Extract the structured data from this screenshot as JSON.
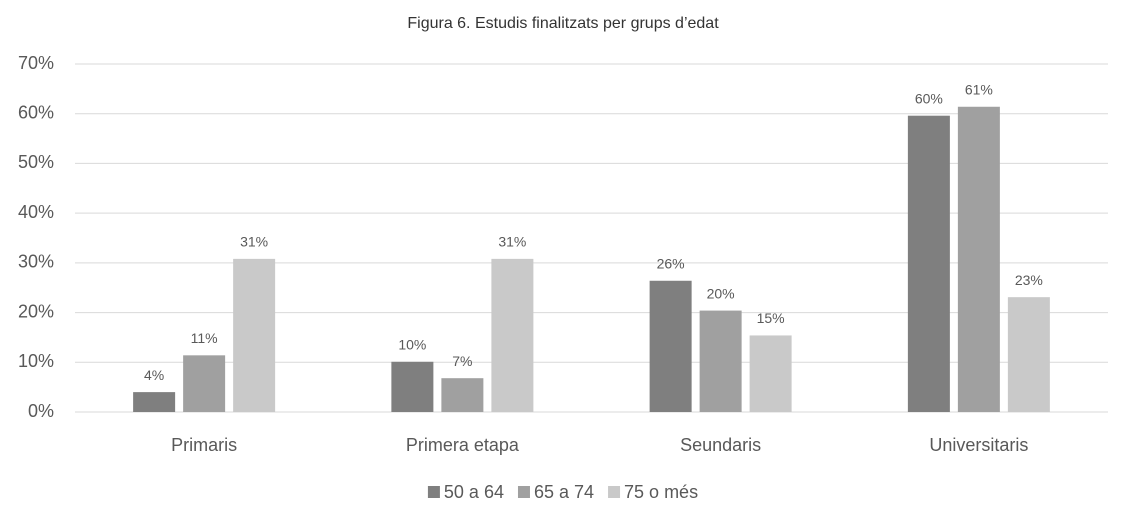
{
  "chart_data": {
    "type": "bar",
    "title": "Figura 6. Estudis finalitzats per grups d’edat",
    "categories": [
      "Primaris",
      "Primera etapa",
      "Seundaris",
      "Universitaris"
    ],
    "series": [
      {
        "name": "50 a 64",
        "color": "#7f7f7f",
        "values": [
          4.0,
          10.1,
          26.4,
          59.6
        ],
        "value_labels": [
          "4%",
          "10%",
          "26%",
          "60%"
        ]
      },
      {
        "name": "65 a 74",
        "color": "#a0a0a0",
        "values": [
          11.4,
          6.8,
          20.4,
          61.4
        ],
        "value_labels": [
          "11%",
          "7%",
          "20%",
          "61%"
        ]
      },
      {
        "name": "75 o més",
        "color": "#c9c9c9",
        "values": [
          30.8,
          30.8,
          15.4,
          23.1
        ],
        "value_labels": [
          "31%",
          "31%",
          "15%",
          "23%"
        ]
      }
    ],
    "ylim": [
      0,
      70
    ],
    "yticks": [
      {
        "value": 0,
        "label": "0%"
      },
      {
        "value": 10,
        "label": "10%"
      },
      {
        "value": 20,
        "label": "20%"
      },
      {
        "value": 30,
        "label": "30%"
      },
      {
        "value": 40,
        "label": "40%"
      },
      {
        "value": 50,
        "label": "50%"
      },
      {
        "value": 60,
        "label": "60%"
      },
      {
        "value": 70,
        "label": "70%"
      }
    ],
    "grid": true,
    "legend": "bottom"
  }
}
